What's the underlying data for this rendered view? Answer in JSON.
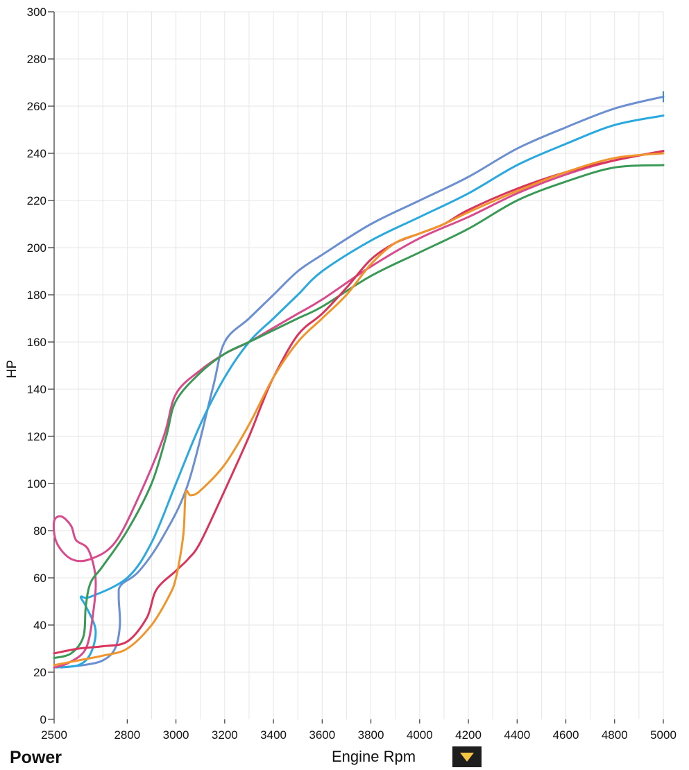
{
  "panel": {
    "title": "Power"
  },
  "dropdown": {
    "icon": "chevron-down-icon",
    "color": "#f5c542"
  },
  "chart_data": {
    "type": "line",
    "xlabel": "Engine Rpm",
    "ylabel": "HP",
    "xlim": [
      2500,
      5000
    ],
    "ylim": [
      0,
      300
    ],
    "x_ticks": [
      2500,
      2800,
      3000,
      3200,
      3400,
      3600,
      3800,
      4000,
      4200,
      4400,
      4600,
      4800,
      5000
    ],
    "y_ticks": [
      0,
      20,
      40,
      60,
      80,
      100,
      120,
      140,
      160,
      180,
      200,
      220,
      240,
      260,
      280,
      300
    ],
    "grid": true,
    "legend": "none",
    "series": [
      {
        "color": "#6b8fd1",
        "points": [
          [
            2530,
            22
          ],
          [
            2620,
            23
          ],
          [
            2700,
            25
          ],
          [
            2750,
            30
          ],
          [
            2770,
            40
          ],
          [
            2765,
            52
          ],
          [
            2775,
            57
          ],
          [
            2850,
            63
          ],
          [
            2950,
            78
          ],
          [
            3050,
            100
          ],
          [
            3150,
            140
          ],
          [
            3200,
            160
          ],
          [
            3300,
            170
          ],
          [
            3400,
            180
          ],
          [
            3500,
            190
          ],
          [
            3600,
            197
          ],
          [
            3800,
            210
          ],
          [
            4000,
            220
          ],
          [
            4200,
            230
          ],
          [
            4400,
            242
          ],
          [
            4600,
            251
          ],
          [
            4800,
            259
          ],
          [
            5000,
            264
          ]
        ]
      },
      {
        "color": "#2aa9df",
        "points": [
          [
            2500,
            22
          ],
          [
            2600,
            23
          ],
          [
            2650,
            28
          ],
          [
            2670,
            38
          ],
          [
            2630,
            48
          ],
          [
            2610,
            52
          ],
          [
            2650,
            52
          ],
          [
            2800,
            60
          ],
          [
            2900,
            75
          ],
          [
            3000,
            100
          ],
          [
            3100,
            125
          ],
          [
            3200,
            145
          ],
          [
            3300,
            160
          ],
          [
            3400,
            170
          ],
          [
            3500,
            180
          ],
          [
            3600,
            190
          ],
          [
            3800,
            203
          ],
          [
            4000,
            213
          ],
          [
            4200,
            223
          ],
          [
            4400,
            235
          ],
          [
            4600,
            244
          ],
          [
            4800,
            252
          ],
          [
            5000,
            256
          ]
        ]
      },
      {
        "color": "#d94a8c",
        "points": [
          [
            2500,
            22
          ],
          [
            2560,
            24
          ],
          [
            2630,
            30
          ],
          [
            2660,
            45
          ],
          [
            2670,
            60
          ],
          [
            2640,
            72
          ],
          [
            2590,
            76
          ],
          [
            2570,
            82
          ],
          [
            2530,
            86
          ],
          [
            2500,
            84
          ],
          [
            2510,
            75
          ],
          [
            2570,
            68
          ],
          [
            2650,
            68
          ],
          [
            2750,
            75
          ],
          [
            2850,
            95
          ],
          [
            2950,
            120
          ],
          [
            3000,
            138
          ],
          [
            3100,
            148
          ],
          [
            3200,
            155
          ],
          [
            3300,
            160
          ],
          [
            3400,
            166
          ],
          [
            3500,
            172
          ],
          [
            3600,
            178
          ],
          [
            3800,
            192
          ],
          [
            4000,
            204
          ],
          [
            4200,
            213
          ],
          [
            4400,
            223
          ],
          [
            4600,
            231
          ],
          [
            4800,
            237
          ],
          [
            5000,
            241
          ]
        ]
      },
      {
        "color": "#3a9a55",
        "points": [
          [
            2500,
            26
          ],
          [
            2570,
            28
          ],
          [
            2620,
            35
          ],
          [
            2630,
            48
          ],
          [
            2650,
            58
          ],
          [
            2700,
            65
          ],
          [
            2800,
            80
          ],
          [
            2900,
            100
          ],
          [
            2960,
            120
          ],
          [
            3000,
            135
          ],
          [
            3100,
            147
          ],
          [
            3200,
            155
          ],
          [
            3300,
            160
          ],
          [
            3400,
            165
          ],
          [
            3500,
            170
          ],
          [
            3600,
            175
          ],
          [
            3800,
            188
          ],
          [
            4000,
            198
          ],
          [
            4200,
            208
          ],
          [
            4400,
            220
          ],
          [
            4600,
            228
          ],
          [
            4800,
            234
          ],
          [
            5000,
            235
          ]
        ]
      },
      {
        "color": "#d8345c",
        "points": [
          [
            2500,
            28
          ],
          [
            2600,
            30
          ],
          [
            2700,
            31
          ],
          [
            2800,
            33
          ],
          [
            2880,
            43
          ],
          [
            2920,
            55
          ],
          [
            3000,
            63
          ],
          [
            3050,
            68
          ],
          [
            3100,
            75
          ],
          [
            3200,
            97
          ],
          [
            3300,
            120
          ],
          [
            3350,
            133
          ],
          [
            3400,
            145
          ],
          [
            3500,
            163
          ],
          [
            3600,
            172
          ],
          [
            3700,
            183
          ],
          [
            3800,
            195
          ],
          [
            3900,
            202
          ],
          [
            4000,
            206
          ],
          [
            4100,
            210
          ],
          [
            4200,
            216
          ],
          [
            4400,
            225
          ],
          [
            4600,
            232
          ],
          [
            4800,
            237
          ],
          [
            5000,
            241
          ]
        ]
      },
      {
        "color": "#f0952a",
        "points": [
          [
            2500,
            23
          ],
          [
            2600,
            25
          ],
          [
            2700,
            27
          ],
          [
            2800,
            30
          ],
          [
            2900,
            40
          ],
          [
            2970,
            52
          ],
          [
            3000,
            60
          ],
          [
            3030,
            78
          ],
          [
            3040,
            96
          ],
          [
            3060,
            95
          ],
          [
            3100,
            97
          ],
          [
            3200,
            108
          ],
          [
            3300,
            125
          ],
          [
            3400,
            145
          ],
          [
            3500,
            160
          ],
          [
            3600,
            170
          ],
          [
            3700,
            180
          ],
          [
            3800,
            193
          ],
          [
            3900,
            202
          ],
          [
            4000,
            206
          ],
          [
            4100,
            210
          ],
          [
            4200,
            215
          ],
          [
            4400,
            224
          ],
          [
            4600,
            232
          ],
          [
            4800,
            238
          ],
          [
            5000,
            240
          ]
        ]
      }
    ]
  }
}
